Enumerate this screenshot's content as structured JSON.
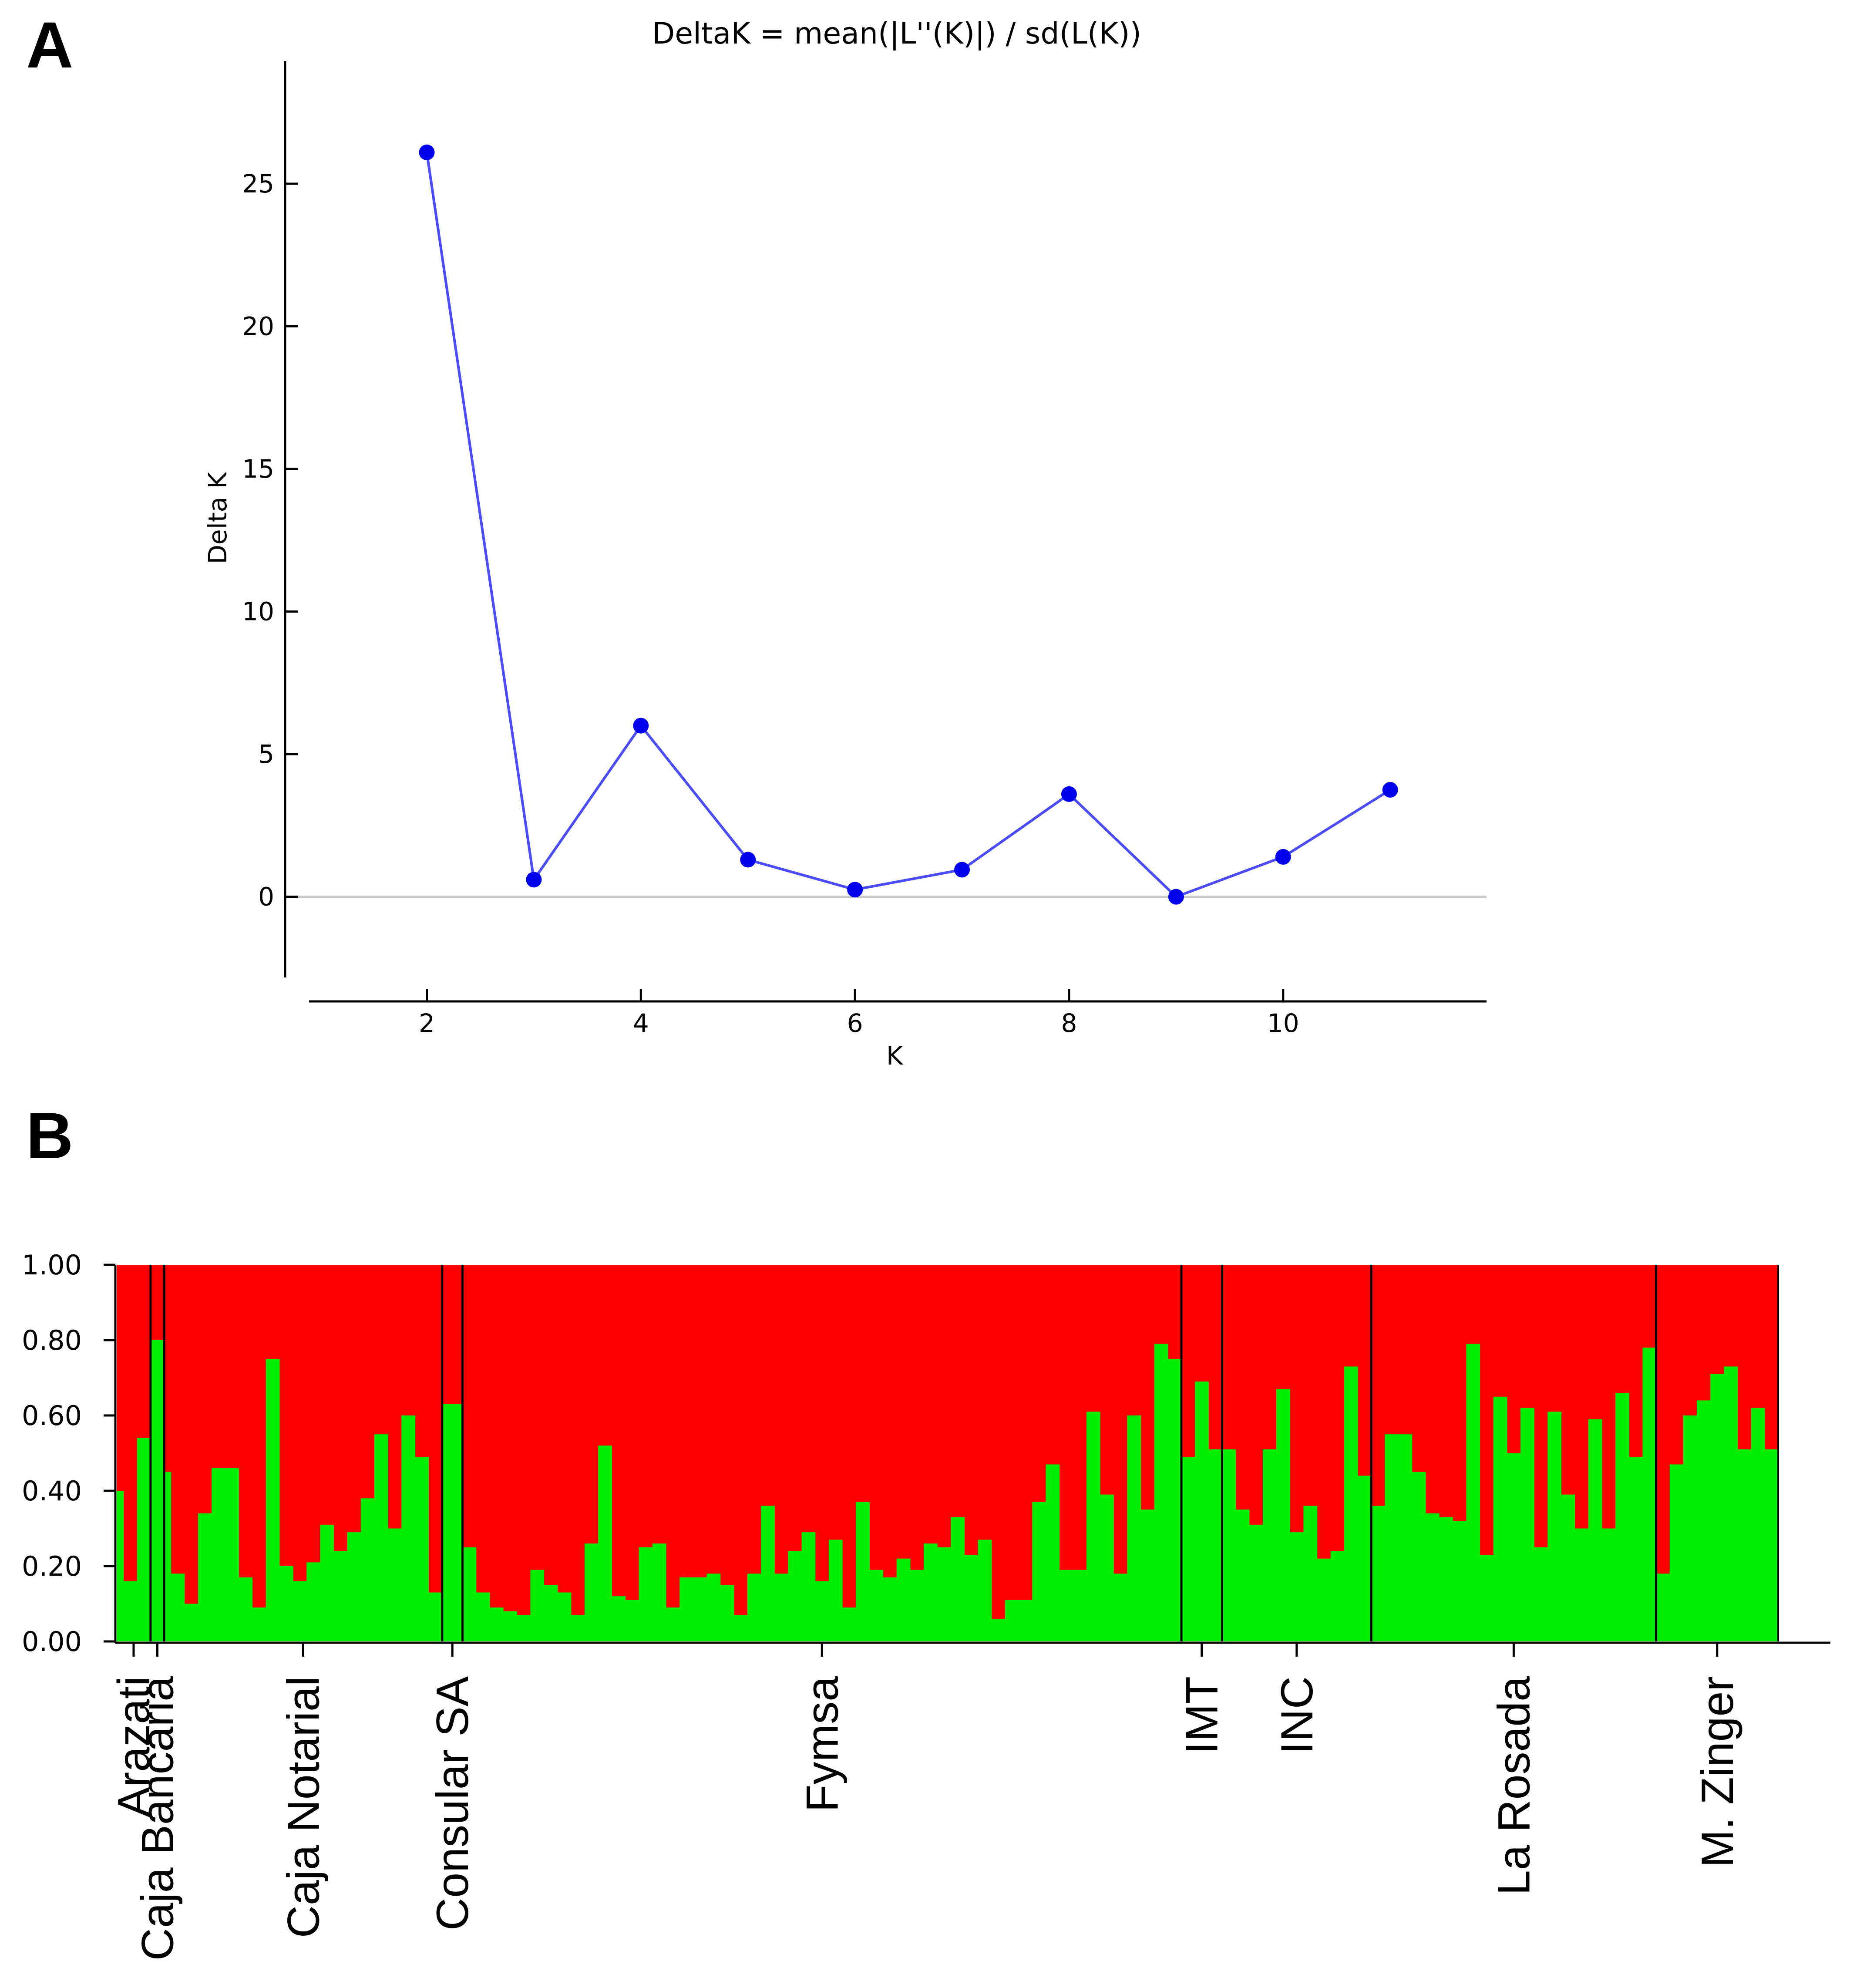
{
  "colors": {
    "line": "#4c4cff",
    "marker": "#0000ee",
    "zero_line": "#cccccc",
    "axis": "#000000",
    "cluster_1": "#ff0000",
    "cluster_2": "#00ee00",
    "separator": "#000000"
  },
  "chart_data": [
    {
      "panel": "A",
      "type": "line",
      "title": "DeltaK = mean(|L''(K)|) / sd(L(K))",
      "xlabel": "K",
      "ylabel": "Delta K",
      "x": [
        2,
        3,
        4,
        5,
        6,
        7,
        8,
        9,
        10,
        11
      ],
      "y": [
        26.1,
        0.6,
        6.0,
        1.3,
        0.25,
        0.95,
        3.6,
        0.0,
        1.4,
        3.75
      ],
      "xlim": [
        0.9,
        11.9
      ],
      "ylim": [
        -2.6,
        29
      ],
      "xticks": [
        2,
        4,
        6,
        8,
        10
      ],
      "yticks": [
        0,
        5,
        10,
        15,
        20,
        25
      ],
      "grid": false,
      "zero_line": true
    },
    {
      "panel": "B",
      "type": "bar",
      "stacked": true,
      "ylim": [
        0,
        1
      ],
      "yticks": [
        "0.00",
        "0.20",
        "0.40",
        "0.60",
        "0.80",
        "1.00"
      ],
      "series_order": [
        "cluster_2 (green, bottom)",
        "cluster_1 (red, top)"
      ],
      "groups": [
        {
          "name": "Arazati",
          "values": [
            0.4,
            0.16,
            0.16,
            0.54,
            0.54
          ]
        },
        {
          "name": "Caja Bancaria",
          "values": [
            0.8,
            0.8
          ]
        },
        {
          "name": "Caja Notarial",
          "values": [
            0.45,
            0.18,
            0.18,
            0.1,
            0.1,
            0.34,
            0.34,
            0.46,
            0.46,
            0.46,
            0.46,
            0.17,
            0.17,
            0.09,
            0.09,
            0.75,
            0.75,
            0.2,
            0.2,
            0.16,
            0.16,
            0.21,
            0.21,
            0.31,
            0.31,
            0.24,
            0.24,
            0.29,
            0.29,
            0.38,
            0.38,
            0.55,
            0.55,
            0.3,
            0.3,
            0.6,
            0.6,
            0.49,
            0.49,
            0.13,
            0.13
          ]
        },
        {
          "name": "Consular SA",
          "values": [
            0.63,
            0.63,
            0.63
          ]
        },
        {
          "name": "Fymsa",
          "values": [
            0.25,
            0.25,
            0.13,
            0.13,
            0.09,
            0.09,
            0.08,
            0.08,
            0.07,
            0.07,
            0.19,
            0.19,
            0.15,
            0.15,
            0.13,
            0.13,
            0.07,
            0.07,
            0.26,
            0.26,
            0.52,
            0.52,
            0.12,
            0.12,
            0.11,
            0.11,
            0.25,
            0.25,
            0.26,
            0.26,
            0.09,
            0.09,
            0.17,
            0.17,
            0.17,
            0.17,
            0.18,
            0.18,
            0.15,
            0.15,
            0.07,
            0.07,
            0.18,
            0.18,
            0.36,
            0.36,
            0.18,
            0.18,
            0.24,
            0.24,
            0.29,
            0.29,
            0.16,
            0.16,
            0.27,
            0.27,
            0.09,
            0.09,
            0.37,
            0.37,
            0.19,
            0.19,
            0.17,
            0.17,
            0.22,
            0.22,
            0.19,
            0.19,
            0.26,
            0.26,
            0.25,
            0.25,
            0.33,
            0.33,
            0.23,
            0.23,
            0.27,
            0.27,
            0.06,
            0.06,
            0.11,
            0.11,
            0.11,
            0.11,
            0.37,
            0.37,
            0.47,
            0.47,
            0.19,
            0.19,
            0.19,
            0.19,
            0.61,
            0.61,
            0.39,
            0.39,
            0.18,
            0.18,
            0.6,
            0.6,
            0.35,
            0.35,
            0.79,
            0.79,
            0.75,
            0.75
          ]
        },
        {
          "name": "IMT",
          "values": [
            0.49,
            0.49,
            0.69,
            0.69,
            0.51,
            0.51
          ]
        },
        {
          "name": "INC",
          "values": [
            0.51,
            0.51,
            0.35,
            0.35,
            0.31,
            0.31,
            0.51,
            0.51,
            0.67,
            0.67,
            0.29,
            0.29,
            0.36,
            0.36,
            0.22,
            0.22,
            0.24,
            0.24,
            0.73,
            0.73,
            0.44,
            0.44
          ]
        },
        {
          "name": "La Rosada",
          "values": [
            0.36,
            0.36,
            0.55,
            0.55,
            0.55,
            0.55,
            0.45,
            0.45,
            0.34,
            0.34,
            0.33,
            0.33,
            0.32,
            0.32,
            0.79,
            0.79,
            0.23,
            0.23,
            0.65,
            0.65,
            0.5,
            0.5,
            0.62,
            0.62,
            0.25,
            0.25,
            0.61,
            0.61,
            0.39,
            0.39,
            0.3,
            0.3,
            0.59,
            0.59,
            0.3,
            0.3,
            0.66,
            0.66,
            0.49,
            0.49,
            0.78,
            0.78
          ]
        },
        {
          "name": "M. Zinger",
          "values": [
            0.18,
            0.18,
            0.47,
            0.47,
            0.6,
            0.6,
            0.64,
            0.64,
            0.71,
            0.71,
            0.73,
            0.73,
            0.51,
            0.51,
            0.62,
            0.62,
            0.51,
            0.51
          ]
        }
      ]
    }
  ],
  "panel_labels": {
    "a": "A",
    "b": "B"
  }
}
